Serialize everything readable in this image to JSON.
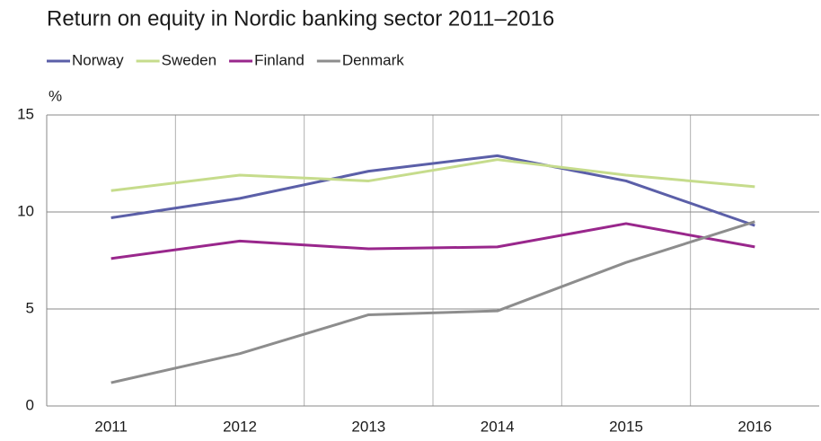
{
  "chart_data": {
    "type": "line",
    "title": "Return on equity in Nordic banking sector 2011–2016",
    "y_label": "%",
    "categories": [
      "2011",
      "2012",
      "2013",
      "2014",
      "2015",
      "2016"
    ],
    "series": [
      {
        "name": "Norway",
        "color": "#5b5fa8",
        "values": [
          9.7,
          10.7,
          12.1,
          12.9,
          11.6,
          9.3
        ]
      },
      {
        "name": "Sweden",
        "color": "#c6dc8c",
        "values": [
          11.1,
          11.9,
          11.6,
          12.7,
          11.9,
          11.3
        ]
      },
      {
        "name": "Finland",
        "color": "#99278c",
        "values": [
          7.6,
          8.5,
          8.1,
          8.2,
          9.4,
          8.2
        ]
      },
      {
        "name": "Denmark",
        "color": "#8d8d8d",
        "values": [
          1.2,
          2.7,
          4.7,
          4.9,
          7.4,
          9.5
        ]
      }
    ],
    "ylim": [
      0,
      15
    ],
    "yticks": [
      0,
      5,
      10,
      15
    ],
    "grid": true,
    "legend": "top"
  }
}
